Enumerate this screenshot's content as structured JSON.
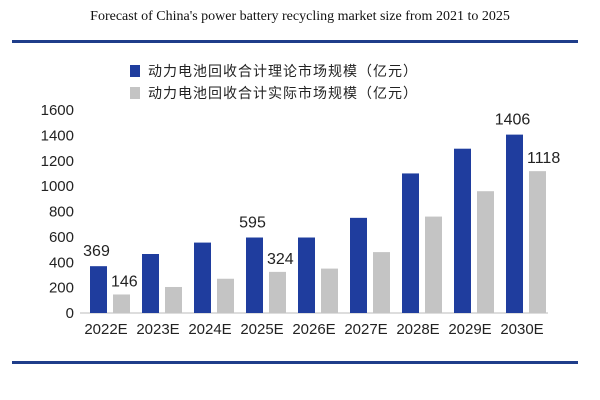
{
  "title": "Forecast of China's power battery recycling market size from 2021 to 2025",
  "colors": {
    "theoretical": "#1f3d9e",
    "actual": "#c4c4c4",
    "rule": "#1f3d8a"
  },
  "chart_data": {
    "type": "bar",
    "categories": [
      "2022E",
      "2023E",
      "2024E",
      "2025E",
      "2026E",
      "2027E",
      "2028E",
      "2029E",
      "2030E"
    ],
    "series": [
      {
        "name": "动力电池回收合计理论市场规模（亿元）",
        "values": [
          369,
          465,
          555,
          595,
          595,
          750,
          1100,
          1295,
          1406
        ]
      },
      {
        "name": "动力电池回收合计实际市场规模（亿元）",
        "values": [
          146,
          205,
          270,
          324,
          350,
          480,
          760,
          960,
          1118
        ]
      }
    ],
    "data_labels": [
      {
        "series": 0,
        "index": 0,
        "text": "369"
      },
      {
        "series": 1,
        "index": 0,
        "text": "146"
      },
      {
        "series": 0,
        "index": 3,
        "text": "595"
      },
      {
        "series": 1,
        "index": 3,
        "text": "324"
      },
      {
        "series": 0,
        "index": 8,
        "text": "1406"
      },
      {
        "series": 1,
        "index": 8,
        "text": "1118"
      }
    ],
    "yticks": [
      "0",
      "200",
      "400",
      "600",
      "800",
      "1000",
      "1200",
      "1400",
      "1600"
    ],
    "ylim": [
      0,
      1600
    ],
    "grid": false,
    "legend": "top-left"
  }
}
